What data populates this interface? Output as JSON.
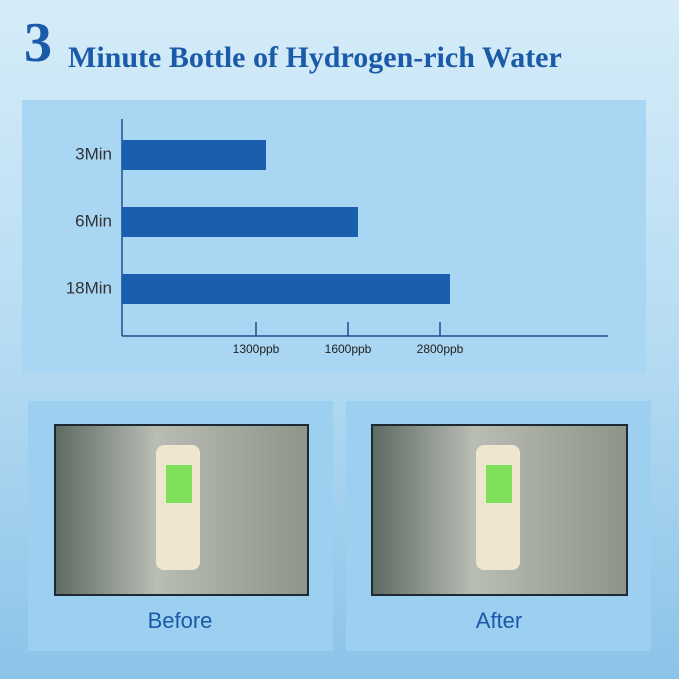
{
  "header": {
    "number": "3",
    "title": "Minute Bottle of Hydrogen-rich Water"
  },
  "chart_data": {
    "type": "bar",
    "orientation": "horizontal",
    "categories": [
      "3Min",
      "6Min",
      "18Min"
    ],
    "values": [
      1300,
      1600,
      2800
    ],
    "color": "#1a5fad",
    "xticks": [
      {
        "value": 1300,
        "label": "1300ppb"
      },
      {
        "value": 1600,
        "label": "1600ppb"
      },
      {
        "value": 2800,
        "label": "2800ppb"
      }
    ]
  },
  "panels": [
    {
      "label": "Before"
    },
    {
      "label": "After"
    }
  ]
}
